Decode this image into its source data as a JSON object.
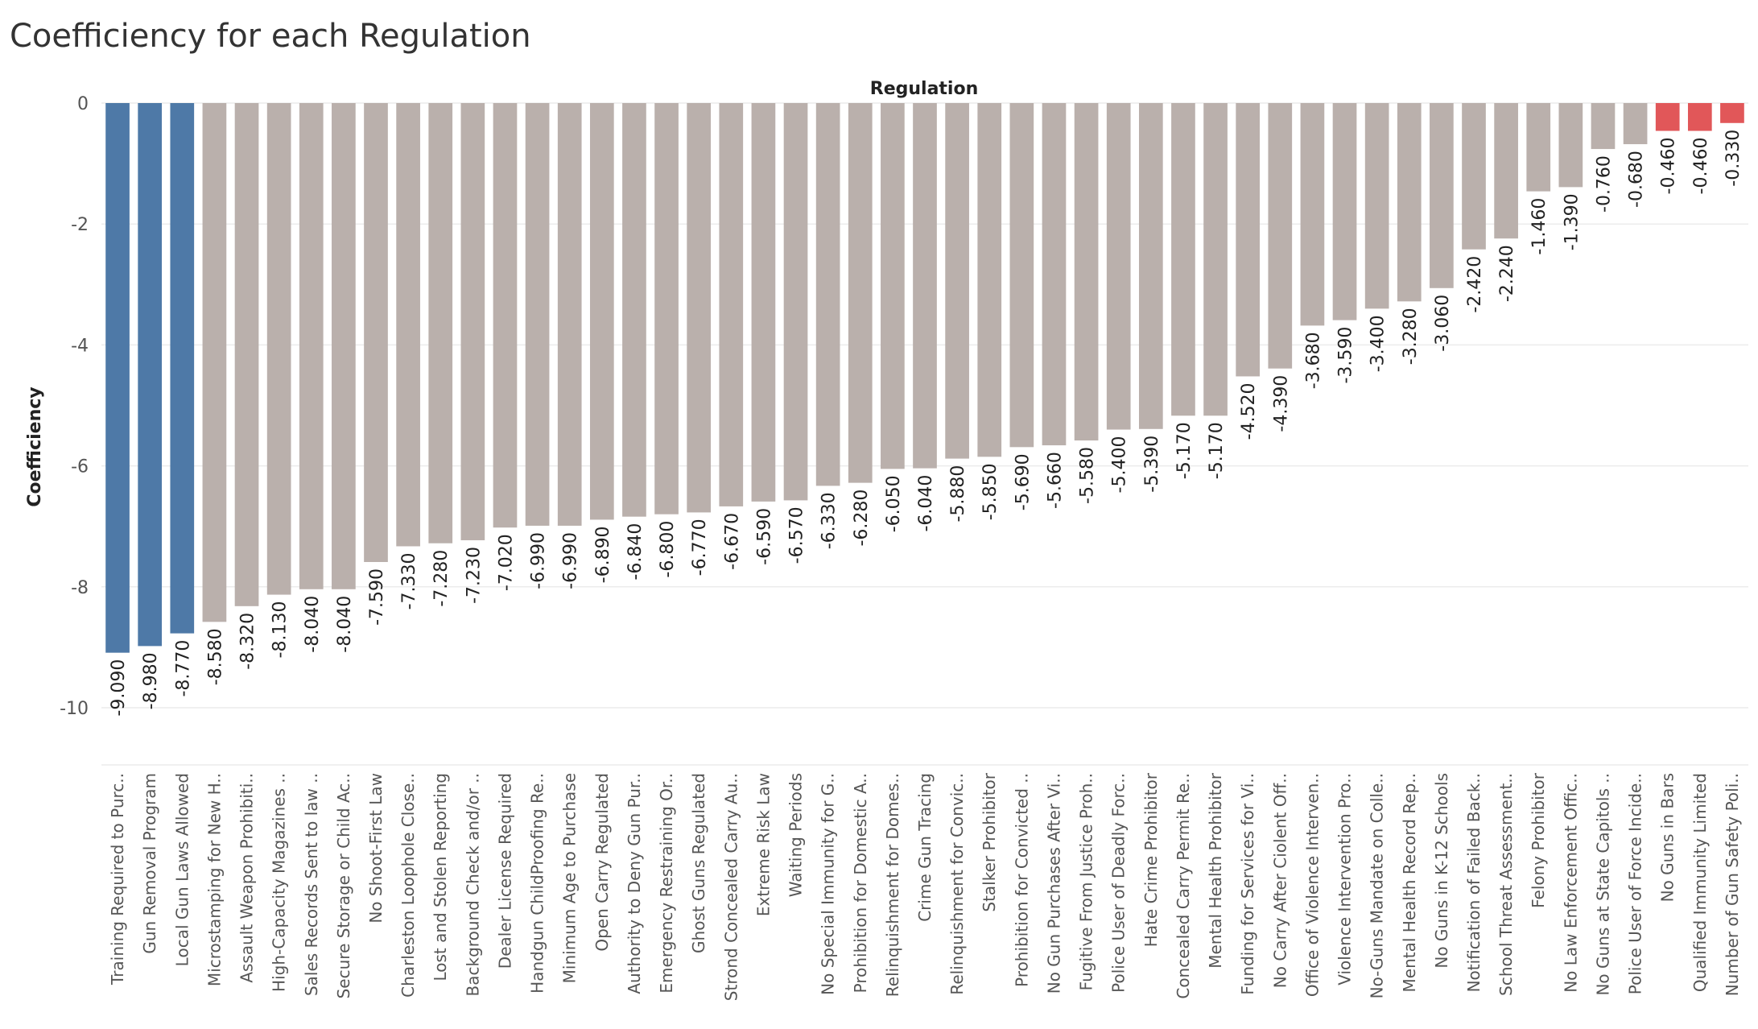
{
  "chart_data": {
    "type": "bar",
    "title": "Coefficiency for each Regulation",
    "xlabel": "Regulation",
    "ylabel": "Coefficiency",
    "ylim": [
      -10.7,
      0.25
    ],
    "yticks": [
      0,
      -2,
      -4,
      -6,
      -8,
      -10
    ],
    "grid": true,
    "categories": [
      "Training Required to Purc..",
      "Gun Removal Program",
      "Local Gun Laws Allowed",
      "Microstamping for New H..",
      "Assault Weapon Prohibiti..",
      "High-Capacity Magazines ..",
      "Sales Records Sent to law ..",
      "Secure Storage or Child Ac..",
      "No Shoot-First Law",
      "Charleston Loophole Close..",
      "Lost and Stolen Reporting",
      "Background Check and/or ..",
      "Dealer License Required",
      "Handgun ChildProofing Re..",
      "Minimum Age to Purchase",
      "Open Carry Regulated",
      "Authority to Deny Gun Pur..",
      "Emergency Restraining Or..",
      "Ghost Guns Regulated",
      "Strond Concealed Carry Au..",
      "Extreme Risk Law",
      "Waiting Periods",
      "No Special Immunity for G..",
      "Prohibition for Domestic A..",
      "Relinquishment for Domes..",
      "Crime Gun Tracing",
      "Relinquishment for Convic..",
      "Stalker Prohibitor",
      "Prohibition for Convicted ..",
      "No Gun Purchases After Vi..",
      "Fugitive From Justice Proh..",
      "Police User of Deadly Forc..",
      "Hate Crime Prohibitor",
      "Concealed Carry Permit Re..",
      "Mental Health Prohibitor",
      "Funding for Services for Vi..",
      "No Carry After Ciolent Off..",
      "Office of Violence Interven..",
      "Violence Intervention Pro..",
      "No-Guns Mandate on Colle..",
      "Mental Health Record Rep..",
      "No Guns in K-12 Schools",
      "Notification of Failed Back..",
      "School Threat Assessment..",
      "Felony Prohibitor",
      "No Law Enforcement Offic..",
      "No Guns at State Capitols ..",
      "Police User of Force Incide..",
      "No Guns in Bars",
      "Qualified Immunity Limited",
      "Number of Gun Safety Poli.."
    ],
    "values": [
      -9.09,
      -8.98,
      -8.77,
      -8.58,
      -8.32,
      -8.13,
      -8.04,
      -8.04,
      -7.59,
      -7.33,
      -7.28,
      -7.23,
      -7.02,
      -6.99,
      -6.99,
      -6.89,
      -6.84,
      -6.8,
      -6.77,
      -6.67,
      -6.59,
      -6.57,
      -6.33,
      -6.28,
      -6.05,
      -6.04,
      -5.88,
      -5.85,
      -5.69,
      -5.66,
      -5.58,
      -5.4,
      -5.39,
      -5.17,
      -5.17,
      -4.52,
      -4.39,
      -3.68,
      -3.59,
      -3.4,
      -3.28,
      -3.06,
      -2.42,
      -2.24,
      -1.46,
      -1.39,
      -0.76,
      -0.68,
      -0.46,
      -0.46,
      -0.33
    ],
    "value_labels": [
      "-9.090",
      "-8.980",
      "-8.770",
      "-8.580",
      "-8.320",
      "-8.130",
      "-8.040",
      "-8.040",
      "-7.590",
      "-7.330",
      "-7.280",
      "-7.230",
      "-7.020",
      "-6.990",
      "-6.990",
      "-6.890",
      "-6.840",
      "-6.800",
      "-6.770",
      "-6.670",
      "-6.590",
      "-6.570",
      "-6.330",
      "-6.280",
      "-6.050",
      "-6.040",
      "-5.880",
      "-5.850",
      "-5.690",
      "-5.660",
      "-5.580",
      "-5.400",
      "-5.390",
      "-5.170",
      "-5.170",
      "-4.520",
      "-4.390",
      "-3.680",
      "-3.590",
      "-3.400",
      "-3.280",
      "-3.060",
      "-2.420",
      "-2.240",
      "-1.460",
      "-1.390",
      "-0.760",
      "-0.680",
      "-0.460",
      "-0.460",
      "-0.330"
    ],
    "colors": {
      "low": "#4e79a7",
      "mid": "#bab0ac",
      "high": "#e15759"
    },
    "color_groups": [
      "low",
      "low",
      "low",
      "mid",
      "mid",
      "mid",
      "mid",
      "mid",
      "mid",
      "mid",
      "mid",
      "mid",
      "mid",
      "mid",
      "mid",
      "mid",
      "mid",
      "mid",
      "mid",
      "mid",
      "mid",
      "mid",
      "mid",
      "mid",
      "mid",
      "mid",
      "mid",
      "mid",
      "mid",
      "mid",
      "mid",
      "mid",
      "mid",
      "mid",
      "mid",
      "mid",
      "mid",
      "mid",
      "mid",
      "mid",
      "mid",
      "mid",
      "mid",
      "mid",
      "mid",
      "mid",
      "mid",
      "mid",
      "high",
      "high",
      "high"
    ]
  }
}
